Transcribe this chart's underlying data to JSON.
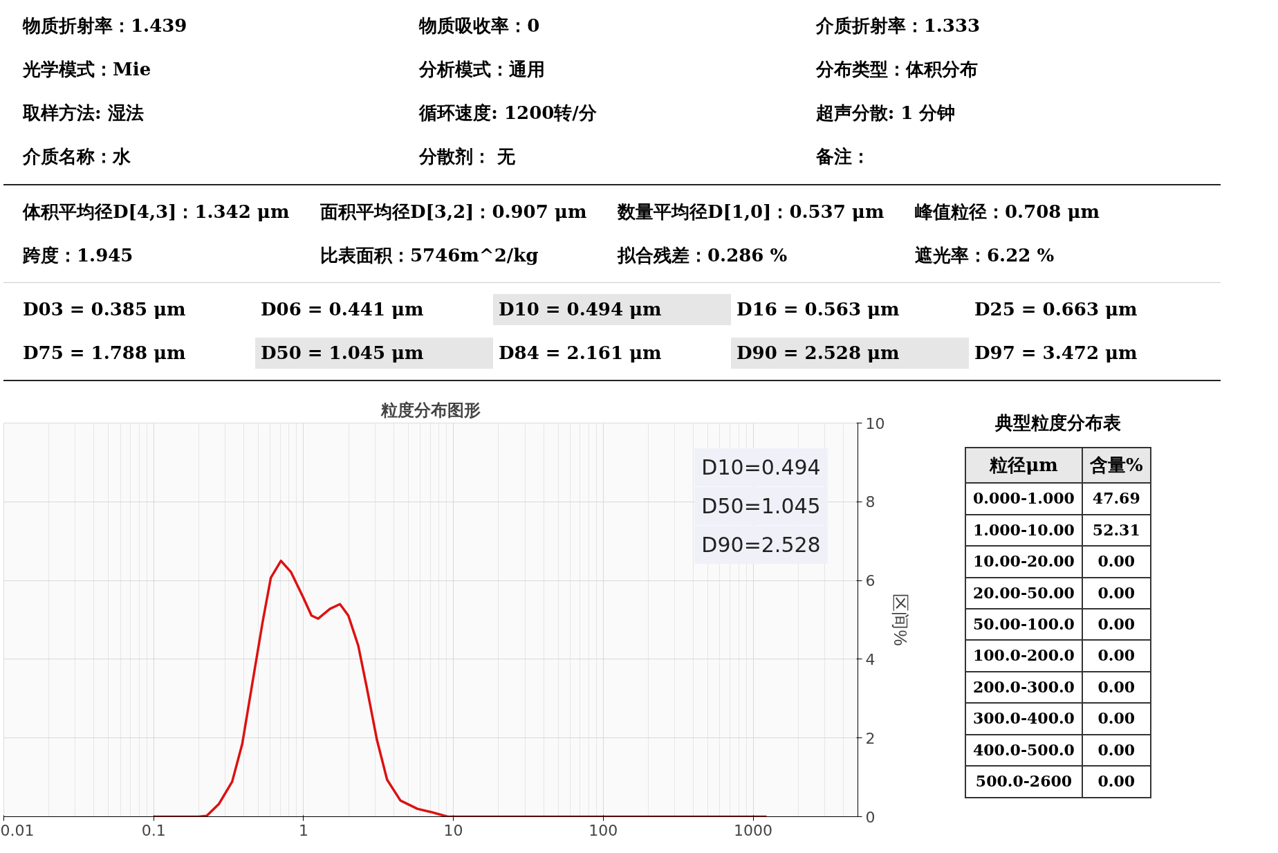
{
  "chart_data": {
    "type": "line",
    "title": "粒度分布图形",
    "ylabel": "区间%",
    "x": [
      0.1,
      0.199,
      0.226,
      0.272,
      0.334,
      0.39,
      0.455,
      0.532,
      0.605,
      0.707,
      0.826,
      0.99,
      1.13,
      1.25,
      1.5,
      1.75,
      1.99,
      2.32,
      2.64,
      3.09,
      3.61,
      4.43,
      5.75,
      7.07,
      9.16,
      1230
    ],
    "series": [
      {
        "color": "#dd1111",
        "values": [
          0,
          0,
          0.02,
          0.32,
          0.89,
          1.85,
          3.38,
          4.92,
          6.07,
          6.5,
          6.21,
          5.59,
          5.11,
          5.03,
          5.28,
          5.4,
          5.11,
          4.34,
          3.29,
          1.95,
          0.94,
          0.41,
          0.2,
          0.12,
          0,
          0
        ]
      }
    ],
    "xlim": [
      0.01,
      5000
    ],
    "ylim": [
      0,
      10
    ],
    "xticks": [
      0.01,
      0.1,
      1,
      10,
      100,
      1000
    ],
    "yticks": [
      0,
      2,
      4,
      6,
      8,
      10
    ],
    "log": "x",
    "grid": true,
    "annotations": [
      "物质折射率：1.439",
      "物质吸收率：0",
      "介质折射率：1.333",
      "光学模式：Mie",
      "分析模式：通用",
      "分布类型：体积分布",
      "取样方法:  湿法",
      "循环速度:  1200转/分",
      "超声分散:  1 分钟",
      "介质名称：水",
      "分散剂：  无",
      "备注：",
      "体积平均径D[4,3]：1.342  μm",
      "面积平均径D[3,2]：0.907  μm",
      "数量平均径D[1,0]：0.537  μm",
      "峰值粒径：0.708  μm",
      "跨度：1.945",
      "比表面积：5746m^2/kg",
      "拟合残差：0.286  %",
      "遮光率：6.22  %",
      "D03 = 0.385  μm",
      "D06 = 0.441  μm",
      "D10 = 0.494  μm",
      "D16 = 0.563  μm",
      "D25 = 0.663  μm",
      "D75 = 1.788  μm",
      "D50 = 1.045  μm",
      "D84 = 2.161  μm",
      "D90 = 2.528  μm",
      "D97 = 3.472  μm",
      "D10=0.494",
      "D50=1.045",
      "D90=2.528",
      "典型粒度分布表",
      "粒径μm",
      "含量%",
      "0.000-1.000",
      "47.69",
      "1.000-10.00",
      "52.31",
      "10.00-20.00",
      "0.00",
      "20.00-50.00",
      "0.00",
      "50.00-100.0",
      "0.00",
      "100.0-200.0",
      "0.00",
      "200.0-300.0",
      "0.00",
      "300.0-400.0",
      "0.00",
      "400.0-500.0",
      "0.00",
      "500.0-2600",
      "0.00"
    ]
  }
}
